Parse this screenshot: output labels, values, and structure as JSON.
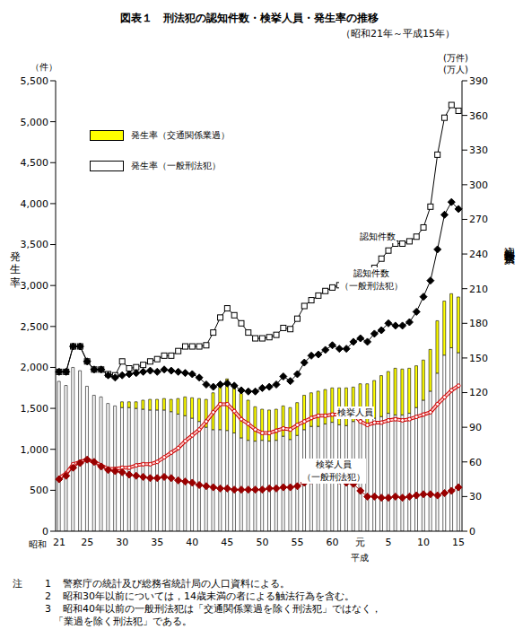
{
  "chart_data": {
    "type": "bar",
    "title": "図表１　刑法犯の認知件数・検挙人員・発生率の推移",
    "subtitle": "（昭和21年～平成15年）",
    "y_label": "発生率",
    "y_unit": "（件）",
    "y2_label": "認知件数・検挙人員",
    "y2_unit": [
      "(万件)",
      "(万人)"
    ],
    "era_labels": [
      {
        "text": "昭和",
        "at": 0
      },
      {
        "text": "平成",
        "at": 43
      }
    ],
    "categories": [
      "21",
      null,
      null,
      null,
      "25",
      null,
      null,
      null,
      null,
      "30",
      null,
      null,
      null,
      null,
      "35",
      null,
      null,
      null,
      null,
      "40",
      null,
      null,
      null,
      null,
      "45",
      null,
      null,
      null,
      null,
      "50",
      null,
      null,
      null,
      null,
      "55",
      null,
      null,
      null,
      null,
      "60",
      null,
      null,
      null,
      "元",
      null,
      null,
      null,
      "5",
      null,
      null,
      null,
      null,
      "10",
      null,
      null,
      null,
      null,
      "15"
    ],
    "stacked": true,
    "grid": false,
    "legend": "upper left",
    "ylim": [
      0,
      5500
    ],
    "yticks": [
      0,
      500,
      {
        "value": 1000,
        "label": "1,000"
      },
      {
        "value": 1500,
        "label": "1,500"
      },
      {
        "value": 2000,
        "label": "2,000"
      },
      {
        "value": 2500,
        "label": "2,500"
      },
      {
        "value": 3000,
        "label": "3,000"
      },
      {
        "value": 3500,
        "label": "3,500"
      },
      {
        "value": 4000,
        "label": "4,000"
      },
      {
        "value": 4500,
        "label": "4,500"
      },
      {
        "value": 5000,
        "label": "5,000"
      },
      {
        "value": 5500,
        "label": "5,500"
      }
    ],
    "y2lim": [
      0,
      390
    ],
    "y2ticks": [
      0,
      30,
      60,
      90,
      120,
      150,
      180,
      210,
      240,
      270,
      300,
      330,
      360,
      390
    ],
    "series": [
      {
        "name": "発生率（交通関係業過）",
        "type": "bar",
        "color": "#ffff00",
        "values": [
          0,
          0,
          0,
          0,
          0,
          0,
          0,
          0,
          0,
          70,
          70,
          80,
          110,
          130,
          130,
          140,
          150,
          190,
          230,
          250,
          280,
          340,
          450,
          570,
          630,
          580,
          540,
          490,
          420,
          380,
          380,
          380,
          370,
          390,
          400,
          420,
          410,
          430,
          420,
          420,
          450,
          460,
          420,
          440,
          480,
          460,
          500,
          510,
          570,
          560,
          550,
          510,
          490,
          510,
          640,
          660,
          660,
          680
        ]
      },
      {
        "name": "発生率（一般刑法犯）",
        "type": "bar",
        "color": "#ffffff",
        "values": [
          1830,
          1780,
          2000,
          1960,
          1770,
          1660,
          1640,
          1560,
          1530,
          1510,
          1510,
          1500,
          1490,
          1480,
          1480,
          1480,
          1460,
          1430,
          1410,
          1380,
          1340,
          1270,
          1240,
          1240,
          1230,
          1200,
          1140,
          1110,
          1100,
          1110,
          1100,
          1110,
          1160,
          1120,
          1170,
          1240,
          1280,
          1280,
          1310,
          1330,
          1300,
          1290,
          1340,
          1360,
          1320,
          1380,
          1400,
          1440,
          1420,
          1420,
          1440,
          1510,
          1600,
          1710,
          1930,
          2150,
          2240,
          2180
        ]
      },
      {
        "name": "認知件数",
        "type": "line",
        "axis": "y2",
        "color": "#000000",
        "marker": "square-open",
        "values": [
          138,
          138,
          160,
          160,
          147,
          140,
          140,
          136,
          135,
          147,
          141,
          142,
          144,
          147,
          149,
          152,
          152,
          156,
          160,
          160,
          160,
          161,
          172,
          185,
          193,
          187,
          180,
          172,
          167,
          167,
          168,
          170,
          176,
          175,
          184,
          195,
          200,
          204,
          208,
          211,
          213,
          214,
          216,
          221,
          222,
          228,
          236,
          243,
          249,
          249,
          251,
          255,
          263,
          281,
          326,
          358,
          369,
          364
        ]
      },
      {
        "name": "認知件数（一般刑法犯）",
        "type": "line",
        "axis": "y2",
        "color": "#000000",
        "marker": "diamond",
        "values": [
          138,
          138,
          160,
          160,
          147,
          140,
          140,
          135,
          133,
          135,
          136,
          137,
          138,
          139,
          138,
          140,
          139,
          138,
          137,
          136,
          133,
          127,
          125,
          127,
          128,
          126,
          122,
          121,
          121,
          124,
          125,
          127,
          134,
          130,
          136,
          146,
          152,
          153,
          157,
          161,
          158,
          158,
          164,
          167,
          164,
          171,
          174,
          180,
          178,
          178,
          181,
          190,
          203,
          217,
          244,
          274,
          285,
          279
        ]
      },
      {
        "name": "検挙人員",
        "type": "line",
        "axis": "y2",
        "color": "#cc0000",
        "marker": "circle-open",
        "line_style": "outline",
        "values": [
          46,
          50,
          58,
          60,
          62,
          60,
          57,
          54,
          54,
          55,
          55,
          57,
          58,
          58,
          60,
          64,
          68,
          72,
          78,
          83,
          88,
          95,
          103,
          110,
          110,
          104,
          97,
          93,
          88,
          85,
          85,
          87,
          89,
          88,
          92,
          95,
          98,
          100,
          100,
          101,
          101,
          100,
          101,
          95,
          92,
          94,
          94,
          96,
          97,
          96,
          97,
          99,
          101,
          103,
          110,
          116,
          122,
          126
        ]
      },
      {
        "name": "検挙人員（一般刑法犯）",
        "type": "line",
        "axis": "y2",
        "color": "#990000",
        "marker": "diamond",
        "values": [
          45,
          48,
          55,
          59,
          62,
          60,
          56,
          53,
          52,
          51,
          49,
          48,
          47,
          46,
          46,
          47,
          46,
          44,
          43,
          42,
          40,
          39,
          38,
          37,
          37,
          36,
          36,
          36,
          36,
          36,
          37,
          37,
          38,
          38,
          39,
          42,
          44,
          46,
          46,
          45,
          44,
          42,
          41,
          35,
          30,
          30,
          29,
          29,
          30,
          29,
          30,
          31,
          32,
          32,
          31,
          33,
          35,
          38
        ]
      }
    ],
    "notes": {
      "label": "注",
      "items": [
        {
          "number": 1,
          "lines": [
            "警察庁の統計及び総務省統計局の人口資料による。"
          ]
        },
        {
          "number": 2,
          "lines": [
            "昭和30年以前については，14歳未満の者による触法行為を含む。"
          ]
        },
        {
          "number": 3,
          "lines": [
            "昭和40年以前の一般刑法犯は「交通関係業過を除く刑法犯」ではなく，",
            "「業過を除く刑法犯」である。"
          ]
        }
      ]
    }
  }
}
